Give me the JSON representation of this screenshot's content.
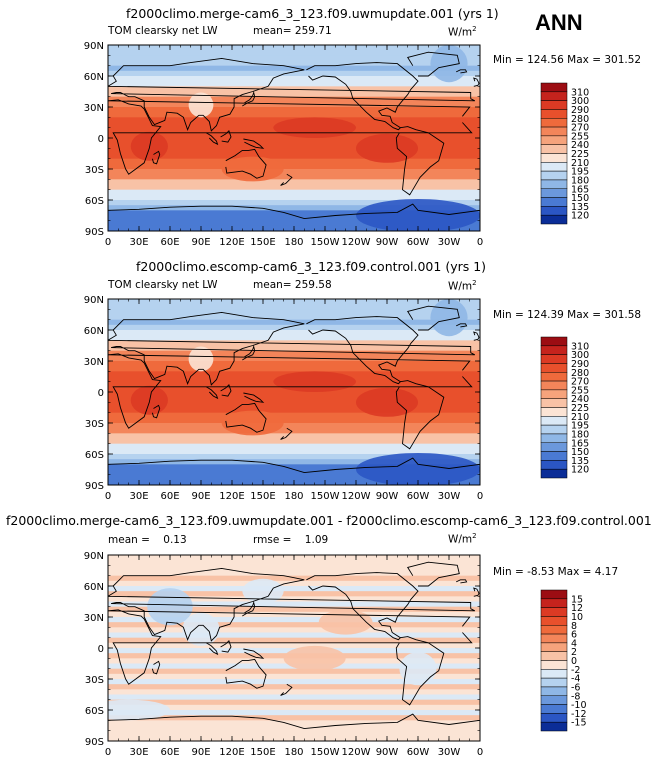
{
  "season": "ANN",
  "panels": [
    {
      "title": "f2000climo.merge-cam6_3_123.f09.uwmupdate.001 (yrs 1)",
      "left_label": "TOM clearsky net LW",
      "mean_label": "mean=",
      "mean_value": "259.71",
      "units": "W/m",
      "units_sup": "2",
      "minmax": "Min = 124.56 Max = 301.52",
      "colorbar_labels": [
        "310",
        "300",
        "290",
        "280",
        "270",
        "255",
        "240",
        "225",
        "210",
        "195",
        "180",
        "165",
        "150",
        "135",
        "120"
      ],
      "colorbar_colors": [
        "#9c0d13",
        "#c5231d",
        "#dc3a24",
        "#e8502c",
        "#ef6a3c",
        "#f3855a",
        "#f6a37c",
        "#f8c2a6",
        "#fbe4d5",
        "#dbe9f6",
        "#b5d2ef",
        "#8fb7e6",
        "#6b98dc",
        "#4a7ad3",
        "#2b56c4",
        "#0b2d97"
      ]
    },
    {
      "title": "f2000climo.escomp-cam6_3_123.f09.control.001 (yrs 1)",
      "left_label": "TOM clearsky net LW",
      "mean_label": "mean=",
      "mean_value": "259.58",
      "units": "W/m",
      "units_sup": "2",
      "minmax": "Min = 124.39 Max = 301.58",
      "colorbar_labels": [
        "310",
        "300",
        "290",
        "280",
        "270",
        "255",
        "240",
        "225",
        "210",
        "195",
        "180",
        "165",
        "150",
        "135",
        "120"
      ],
      "colorbar_colors": [
        "#9c0d13",
        "#c5231d",
        "#dc3a24",
        "#e8502c",
        "#ef6a3c",
        "#f3855a",
        "#f6a37c",
        "#f8c2a6",
        "#fbe4d5",
        "#dbe9f6",
        "#b5d2ef",
        "#8fb7e6",
        "#6b98dc",
        "#4a7ad3",
        "#2b56c4",
        "#0b2d97"
      ]
    },
    {
      "title": "f2000climo.merge-cam6_3_123.f09.uwmupdate.001 - f2000climo.escomp-cam6_3_123.f09.control.001",
      "left_label": "mean =",
      "mean_label": "",
      "mean_value": "0.13",
      "rmse_label": "rmse =",
      "rmse_value": "1.09",
      "units": "W/m",
      "units_sup": "2",
      "minmax": "Min =  -8.53 Max =   4.17",
      "colorbar_labels": [
        "15",
        "12",
        "10",
        "8",
        "6",
        "4",
        "2",
        "0",
        "-2",
        "-4",
        "-6",
        "-8",
        "-10",
        "-12",
        "-15"
      ],
      "colorbar_colors": [
        "#9c0d13",
        "#c5231d",
        "#dc3a24",
        "#e8502c",
        "#ef6a3c",
        "#f3855a",
        "#f6a37c",
        "#f8c2a6",
        "#fbe4d5",
        "#dbe9f6",
        "#b5d2ef",
        "#8fb7e6",
        "#6b98dc",
        "#4a7ad3",
        "#2b56c4",
        "#0b2d97"
      ]
    }
  ],
  "chart_data": [
    {
      "type": "heatmap",
      "title": "f2000climo.merge-cam6_3_123.f09.uwmupdate.001 (yrs 1)",
      "variable": "TOM clearsky net LW",
      "units": "W/m2",
      "mean": 259.71,
      "min": 124.56,
      "max": 301.52,
      "x_ticks": [
        "0",
        "30E",
        "60E",
        "90E",
        "120E",
        "150E",
        "180",
        "150W",
        "120W",
        "90W",
        "60W",
        "30W",
        "0"
      ],
      "y_ticks": [
        "90N",
        "60N",
        "30N",
        "0",
        "30S",
        "60S",
        "90S"
      ],
      "levels": [
        120,
        135,
        150,
        165,
        180,
        195,
        210,
        225,
        240,
        255,
        270,
        280,
        290,
        300,
        310
      ]
    },
    {
      "type": "heatmap",
      "title": "f2000climo.escomp-cam6_3_123.f09.control.001 (yrs 1)",
      "variable": "TOM clearsky net LW",
      "units": "W/m2",
      "mean": 259.58,
      "min": 124.39,
      "max": 301.58,
      "x_ticks": [
        "0",
        "30E",
        "60E",
        "90E",
        "120E",
        "150E",
        "180",
        "150W",
        "120W",
        "90W",
        "60W",
        "30W",
        "0"
      ],
      "y_ticks": [
        "90N",
        "60N",
        "30N",
        "0",
        "30S",
        "60S",
        "90S"
      ],
      "levels": [
        120,
        135,
        150,
        165,
        180,
        195,
        210,
        225,
        240,
        255,
        270,
        280,
        290,
        300,
        310
      ]
    },
    {
      "type": "heatmap",
      "title": "f2000climo.merge-cam6_3_123.f09.uwmupdate.001 - f2000climo.escomp-cam6_3_123.f09.control.001",
      "units": "W/m2",
      "mean": 0.13,
      "rmse": 1.09,
      "min": -8.53,
      "max": 4.17,
      "x_ticks": [
        "0",
        "30E",
        "60E",
        "90E",
        "120E",
        "150E",
        "180",
        "150W",
        "120W",
        "90W",
        "60W",
        "30W",
        "0"
      ],
      "y_ticks": [
        "90N",
        "60N",
        "30N",
        "0",
        "30S",
        "60S",
        "90S"
      ],
      "levels": [
        -15,
        -12,
        -10,
        -8,
        -6,
        -4,
        -2,
        0,
        2,
        4,
        6,
        8,
        10,
        12,
        15
      ]
    }
  ]
}
